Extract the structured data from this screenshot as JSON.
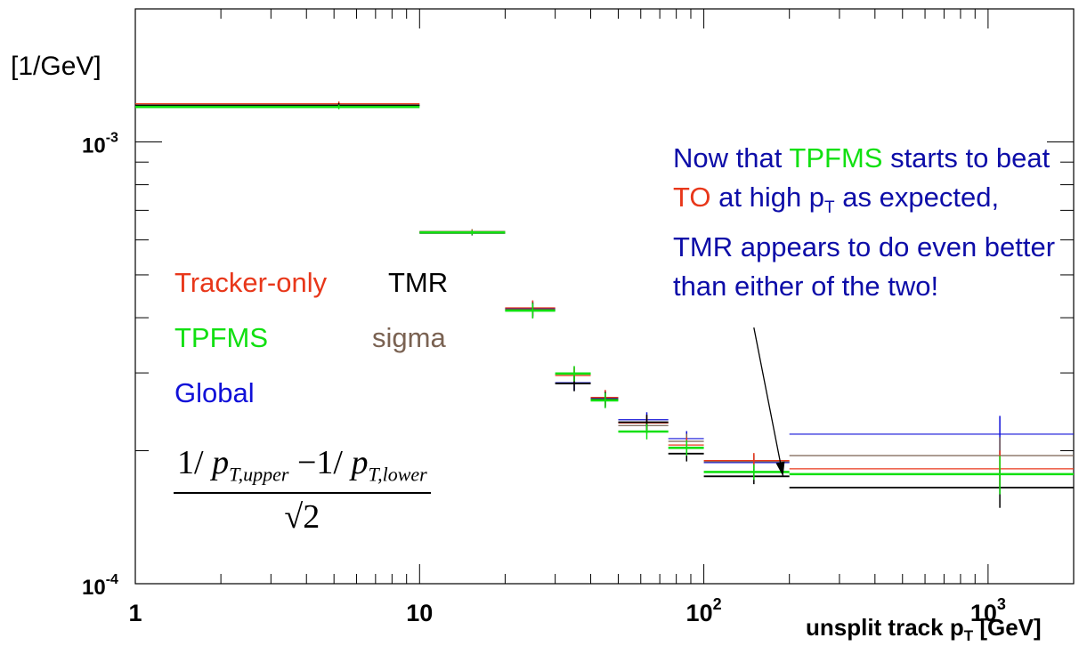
{
  "chart_data": {
    "type": "scatter",
    "title": "",
    "xlabel": "unsplit track p_T [GeV]",
    "ylabel": "[1/GeV]",
    "xscale": "log",
    "yscale": "log",
    "xlim": [
      1,
      2000
    ],
    "ylim": [
      0.0001,
      0.002
    ],
    "x_tick_labels": [
      "1",
      "10",
      "10^2",
      "10^3"
    ],
    "y_tick_labels": [
      "10^-4",
      "10^-3"
    ],
    "grid": false,
    "colors": {
      "Tracker-only": "#e8371a",
      "TPFMS": "#11e011",
      "Global": "#1010d8",
      "TMR": "#000000",
      "sigma": "#7a6252"
    },
    "bins": [
      [
        1,
        10
      ],
      [
        10,
        20
      ],
      [
        20,
        30
      ],
      [
        30,
        40
      ],
      [
        40,
        50
      ],
      [
        50,
        75
      ],
      [
        75,
        100
      ],
      [
        100,
        200
      ],
      [
        200,
        2000
      ]
    ],
    "bin_centers": [
      5.2,
      15.3,
      25,
      35,
      45,
      63,
      87,
      150,
      1100
    ],
    "series": [
      {
        "name": "Global",
        "values": [
          0.00121,
          0.000625,
          0.00042,
          0.000285,
          0.000263,
          0.000235,
          0.000213,
          0.000188,
          0.000218
        ]
      },
      {
        "name": "sigma",
        "values": [
          0.00121,
          0.000627,
          0.000418,
          0.000298,
          0.000262,
          0.000228,
          0.00021,
          0.000189,
          0.000195
        ]
      },
      {
        "name": "Tracker-only",
        "values": [
          0.00122,
          0.000626,
          0.000421,
          0.000296,
          0.000264,
          0.000231,
          0.000206,
          0.00019,
          0.000182
        ]
      },
      {
        "name": "TMR",
        "values": [
          0.00121,
          0.000622,
          0.000416,
          0.000284,
          0.000261,
          0.000232,
          0.000197,
          0.000175,
          0.000165
        ]
      },
      {
        "name": "TPFMS",
        "values": [
          0.0012,
          0.000624,
          0.000415,
          0.000299,
          0.00026,
          0.000221,
          0.000203,
          0.000179,
          0.000177
        ]
      }
    ],
    "legend": [
      "Tracker-only",
      "TMR",
      "TPFMS",
      "sigma",
      "Global"
    ],
    "legend_placement": "left-middle",
    "annotation_arrow": {
      "from_x": 150,
      "from_y": 0.00038,
      "to_x": 190,
      "to_y": 0.000175
    }
  },
  "labels": {
    "y_unit": "[1/GeV]",
    "x_title_main": "unsplit track p",
    "x_title_sub": "T",
    "x_title_unit": " [GeV]"
  },
  "legend_text": {
    "tracker_only": "Tracker-only",
    "tmr": "TMR",
    "tpfms": "TPFMS",
    "sigma": "sigma",
    "global": "Global"
  },
  "annotation": {
    "part1": "Now that ",
    "part2": "TPFMS",
    "part3": " starts to beat ",
    "part4": "TO",
    "part5": " at high p",
    "part6": "T",
    "part7": " as expected, TMR appears to do even better than either of the two!"
  },
  "formula": {
    "one": "1/ ",
    "p1": "p",
    "sub1": "T,upper",
    "minus": " −1/ ",
    "p2": "p",
    "sub2": "T,lower",
    "den": "√2"
  }
}
